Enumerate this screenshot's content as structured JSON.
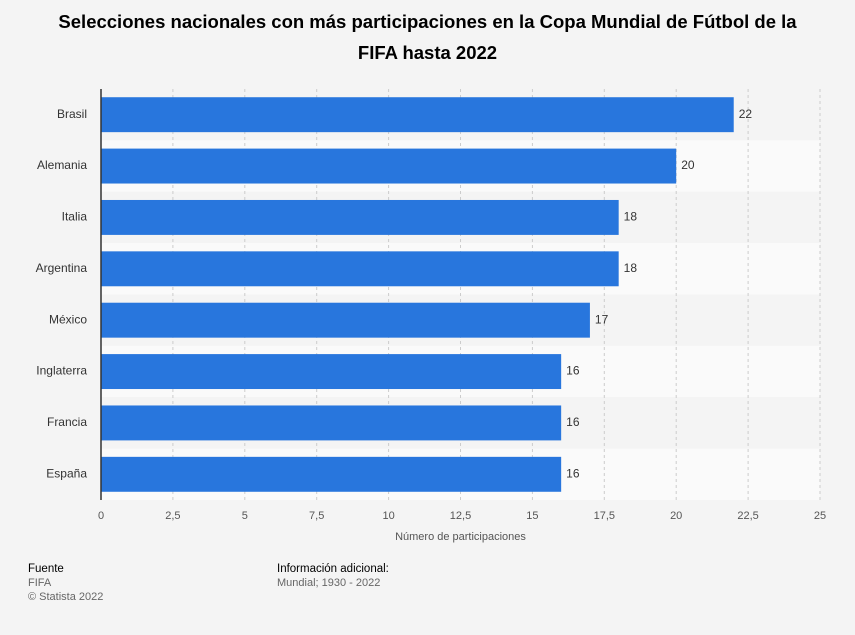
{
  "chart_data": {
    "type": "barh",
    "title": "Selecciones nacionales con más participaciones en la Copa Mundial de Fútbol de la FIFA hasta 2022",
    "categories": [
      "Brasil",
      "Alemania",
      "Italia",
      "Argentina",
      "México",
      "Inglaterra",
      "Francia",
      "España"
    ],
    "values": [
      22,
      20,
      18,
      18,
      17,
      16,
      16,
      16
    ],
    "color": "#2876dd",
    "xlabel": "Número de participaciones",
    "xlim": [
      0,
      25
    ],
    "xticks": [
      0,
      {
        "value": 2.5,
        "label": "2,5"
      },
      5,
      {
        "value": 7.5,
        "label": "7,5"
      },
      10,
      {
        "value": 12.5,
        "label": "12,5"
      },
      15,
      {
        "value": 17.5,
        "label": "17,5"
      },
      20,
      {
        "value": 22.5,
        "label": "22,5"
      },
      25
    ],
    "grid": true
  },
  "footer": {
    "source_label": "Fuente",
    "source": "FIFA",
    "copyright": "© Statista 2022",
    "info_label": "Información adicional:",
    "info": "Mundial; 1930 - 2022"
  }
}
